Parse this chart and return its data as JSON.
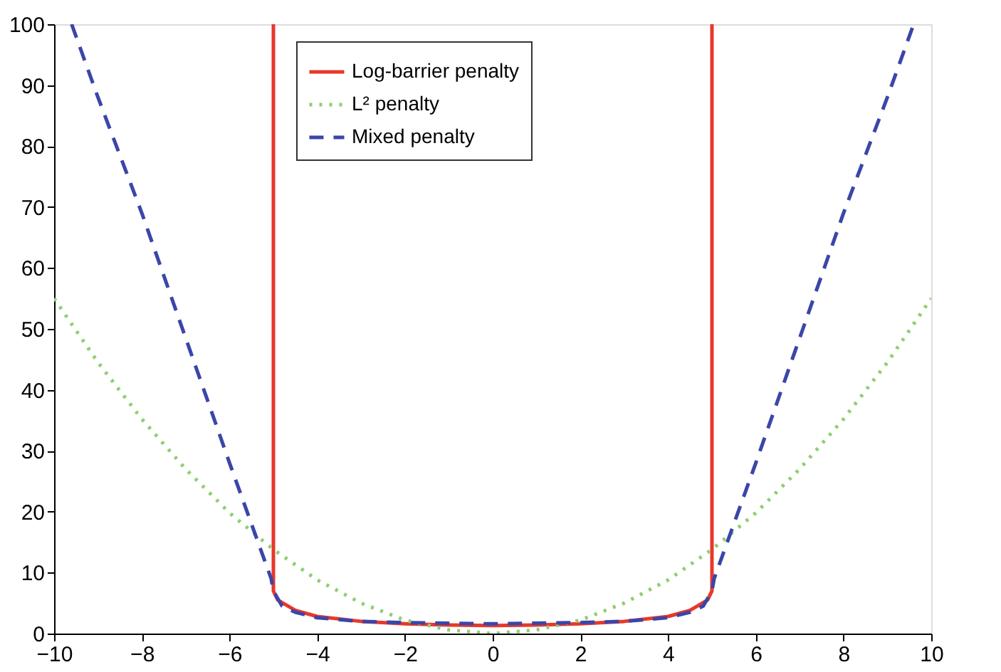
{
  "chart_data": {
    "type": "line",
    "xlim": [
      -10,
      10
    ],
    "ylim": [
      0,
      100
    ],
    "xticks": [
      -10,
      -8,
      -6,
      -4,
      -2,
      0,
      2,
      4,
      6,
      8,
      10
    ],
    "yticks": [
      0,
      10,
      20,
      30,
      40,
      50,
      60,
      70,
      80,
      90,
      100
    ],
    "grid": false,
    "legend": "top",
    "series": [
      {
        "name": "Log-barrier penalty",
        "color": "#e8382a",
        "line_style": "solid",
        "x": [
          -5,
          -5,
          -4.9,
          -4.5,
          -4,
          -3,
          -2,
          -1,
          0,
          1,
          2,
          3,
          4,
          4.5,
          4.9,
          5,
          5
        ],
        "values": [
          100,
          7,
          5.5,
          3.8,
          2.8,
          2,
          1.6,
          1.4,
          1.3,
          1.4,
          1.6,
          2,
          2.8,
          3.8,
          5.5,
          7,
          100
        ]
      },
      {
        "name": "L² penalty",
        "color": "#8fce6f",
        "line_style": "dotted",
        "x": [
          -10,
          -9,
          -8,
          -7,
          -6,
          -5,
          -4,
          -3,
          -2,
          -1,
          0,
          1,
          2,
          3,
          4,
          5,
          6,
          7,
          8,
          9,
          10
        ],
        "values": [
          55,
          44.5,
          35.2,
          27,
          19.8,
          13.8,
          8.8,
          5,
          2.2,
          0.6,
          0,
          0.6,
          2.2,
          5,
          8.8,
          13.8,
          19.8,
          27,
          35.2,
          44.5,
          55
        ]
      },
      {
        "name": "Mixed penalty",
        "color": "#3a46a8",
        "line_style": "dashed",
        "x": [
          -9.6,
          -9,
          -8,
          -7,
          -6,
          -5.5,
          -5.05,
          -5,
          -4.8,
          -4.5,
          -4,
          -3,
          -2,
          0,
          2,
          3,
          4,
          4.5,
          4.8,
          5,
          5.05,
          5.5,
          6,
          7,
          8,
          9,
          9.6
        ],
        "values": [
          100,
          88,
          69,
          48.5,
          28,
          18,
          9,
          7,
          4.5,
          3.5,
          2.6,
          2,
          1.8,
          1.6,
          1.8,
          2,
          2.6,
          3.5,
          4.5,
          7,
          9,
          18,
          28,
          48.5,
          69,
          88,
          100
        ]
      }
    ]
  }
}
